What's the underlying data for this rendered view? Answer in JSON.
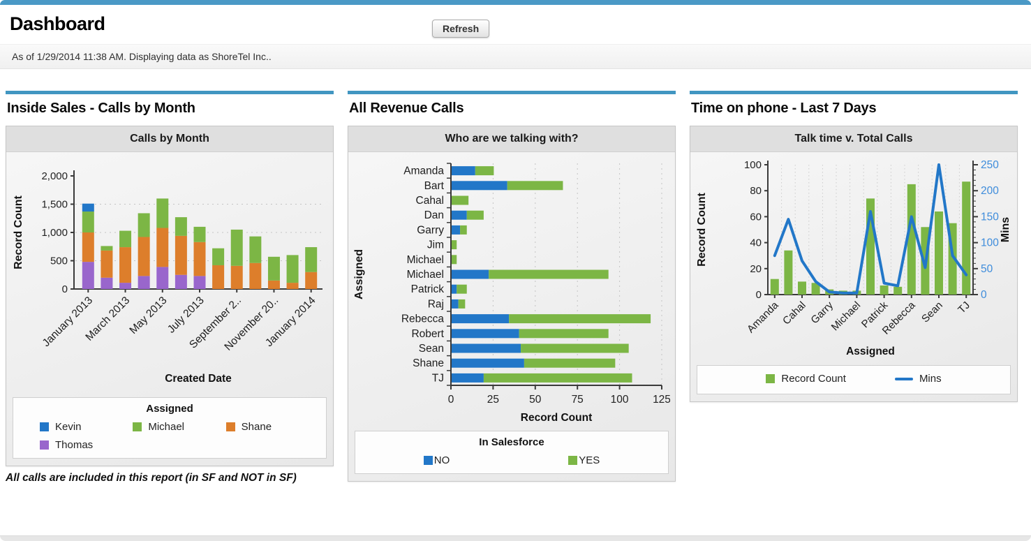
{
  "header": {
    "title": "Dashboard",
    "refresh_label": "Refresh",
    "status_text": "As of 1/29/2014 11:38 AM. Displaying data as ShoreTel Inc.."
  },
  "colors": {
    "blue": "#2277C8",
    "green": "#7CB645",
    "orange": "#DD7E2B",
    "purple": "#9966CC",
    "accent_blue": "#4196C1",
    "top_strip_blue": "#4A99C6",
    "axis_blue": "#3E8CDB"
  },
  "panels": [
    {
      "title": "Inside Sales - Calls by Month",
      "footnote": "All calls are included in this report (in SF and NOT in SF)"
    },
    {
      "title": "All Revenue Calls"
    },
    {
      "title": "Time on phone - Last 7 Days"
    }
  ],
  "chart_data": [
    {
      "type": "bar",
      "stacked": true,
      "title": "Calls by Month",
      "xlabel": "Created Date",
      "ylabel": "Record Count",
      "ylim": [
        0,
        2000
      ],
      "yticks": [
        0,
        500,
        1000,
        1500,
        2000
      ],
      "ytick_labels": [
        "0",
        "500",
        "1,000",
        "1,500",
        "2,000"
      ],
      "xtick_labels": [
        "January 2013",
        "March 2013",
        "May 2013",
        "July 2013",
        "September 2..",
        "November 20..",
        "January 2014"
      ],
      "legend_title": "Assigned",
      "legend_position": "bottom",
      "grid": "dotted-horizontal",
      "stack_order": [
        "Thomas",
        "Shane",
        "Michael",
        "Kevin"
      ],
      "series": [
        {
          "name": "Kevin",
          "color_key": "blue",
          "values": [
            140,
            0,
            0,
            0,
            0,
            0,
            0,
            0,
            0,
            0,
            0,
            0,
            0
          ]
        },
        {
          "name": "Michael",
          "color_key": "green",
          "values": [
            370,
            80,
            290,
            420,
            520,
            330,
            270,
            300,
            640,
            470,
            420,
            490,
            440
          ]
        },
        {
          "name": "Shane",
          "color_key": "orange",
          "values": [
            520,
            480,
            630,
            690,
            690,
            690,
            600,
            420,
            410,
            460,
            150,
            110,
            300
          ]
        },
        {
          "name": "Thomas",
          "color_key": "purple",
          "values": [
            480,
            200,
            110,
            230,
            390,
            250,
            230,
            0,
            0,
            0,
            0,
            0,
            0
          ]
        }
      ]
    },
    {
      "type": "bar",
      "orientation": "horizontal",
      "stacked": true,
      "title": "Who are we talking with?",
      "xlabel": "Record Count",
      "ylabel": "Assigned",
      "xlim": [
        0,
        125
      ],
      "xticks": [
        0,
        25,
        50,
        75,
        100,
        125
      ],
      "categories": [
        "Amanda",
        "Bart",
        "Cahal",
        "Dan",
        "Garry",
        "Jim",
        "Michael",
        "Michael",
        "Patrick",
        "Raj",
        "Rebecca",
        "Robert",
        "Sean",
        "Shane",
        "TJ"
      ],
      "legend_title": "In Salesforce",
      "legend_position": "bottom",
      "grid": "dotted-vertical",
      "series": [
        {
          "name": "NO",
          "color_key": "blue",
          "values": [
            14,
            33,
            0,
            9,
            5,
            0,
            0,
            22,
            3,
            4,
            34,
            40,
            41,
            43,
            19
          ]
        },
        {
          "name": "YES",
          "color_key": "green",
          "values": [
            11,
            33,
            10,
            10,
            4,
            3,
            3,
            71,
            6,
            4,
            84,
            53,
            64,
            54,
            88
          ]
        }
      ]
    },
    {
      "type": "combo bar+line",
      "title": "Talk time v. Total Calls",
      "xlabel": "Assigned",
      "ylabel_left": "Record Count",
      "ylabel_right": "Mins",
      "ylim_left": [
        0,
        100
      ],
      "ylim_right": [
        0,
        250
      ],
      "yticks_left": [
        0,
        20,
        40,
        60,
        80,
        100
      ],
      "yticks_right": [
        0,
        50,
        100,
        150,
        200,
        250
      ],
      "categories": [
        "Amanda",
        "Bart",
        "Cahal",
        "Dan",
        "Garry",
        "Jim",
        "Michael",
        "Michael",
        "Patrick",
        "Raj",
        "Rebecca",
        "Robert",
        "Sean",
        "Shane",
        "TJ"
      ],
      "xtick_labels": [
        "Amanda",
        "Cahal",
        "Garry",
        "Michael",
        "Patrick",
        "Rebecca",
        "Sean",
        "TJ"
      ],
      "legend_position": "bottom",
      "grid": "dotted-vertical",
      "series": [
        {
          "name": "Record Count",
          "type": "bar",
          "axis": "left",
          "color_key": "green",
          "values": [
            12,
            34,
            10,
            9,
            4,
            3,
            3,
            74,
            7,
            6,
            85,
            52,
            64,
            55,
            87
          ]
        },
        {
          "name": "Mins",
          "type": "line",
          "axis": "right",
          "color_key": "blue",
          "values": [
            75,
            145,
            65,
            25,
            5,
            3,
            3,
            160,
            22,
            17,
            150,
            52,
            250,
            75,
            38
          ]
        }
      ]
    }
  ]
}
